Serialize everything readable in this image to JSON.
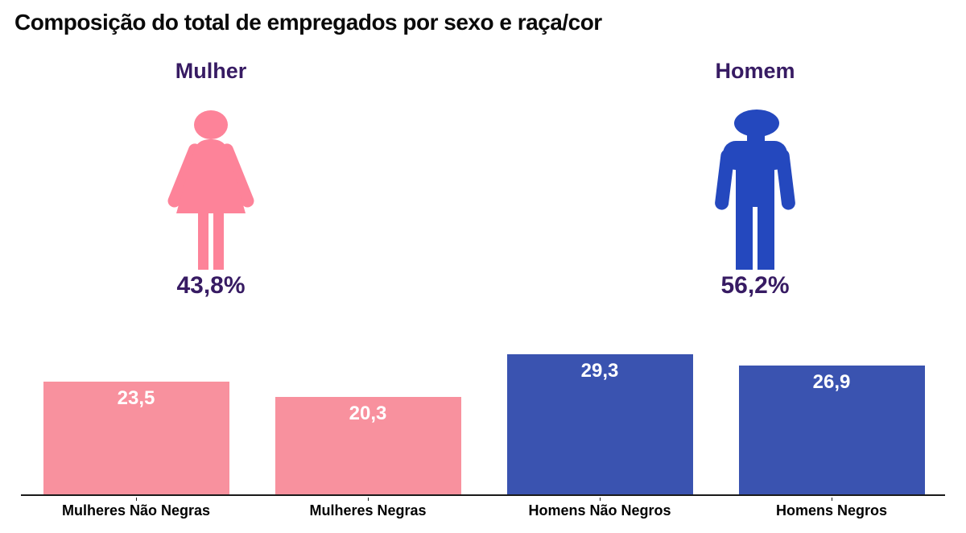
{
  "title": "Composição do total de empregados por sexo e raça/cor",
  "gender_summary": {
    "female": {
      "label": "Mulher",
      "value": "43,8%",
      "icon": "female-icon",
      "icon_color": "#FD8399"
    },
    "male": {
      "label": "Homem",
      "value": "56,2%",
      "icon": "male-icon",
      "icon_color": "#2448BE"
    }
  },
  "chart_data": {
    "type": "bar",
    "title": "Composição do total de empregados por sexo e raça/cor",
    "categories": [
      "Mulheres Não Negras",
      "Mulheres Negras",
      "Homens Não Negros",
      "Homens Negros"
    ],
    "values": [
      23.5,
      20.3,
      29.3,
      26.9
    ],
    "value_labels": [
      "23,5",
      "20,3",
      "29,3",
      "26,9"
    ],
    "bar_colors": [
      "#F8919E",
      "#F8919E",
      "#3A53B0",
      "#3A53B0"
    ],
    "xlabel": "",
    "ylabel": "",
    "ylim": [
      0,
      31
    ],
    "grid": false,
    "legend": "none",
    "value_label_position": "inside-top",
    "value_label_color": "#FFFFFF",
    "axis_line_color": "#1a1a1a"
  },
  "colors": {
    "bar_pink": "#F8919E",
    "bar_blue": "#3A53B0",
    "icon_pink": "#FD8399",
    "icon_blue": "#2448BE",
    "purple_text": "#371B63",
    "title_text": "#0a0a0a"
  }
}
